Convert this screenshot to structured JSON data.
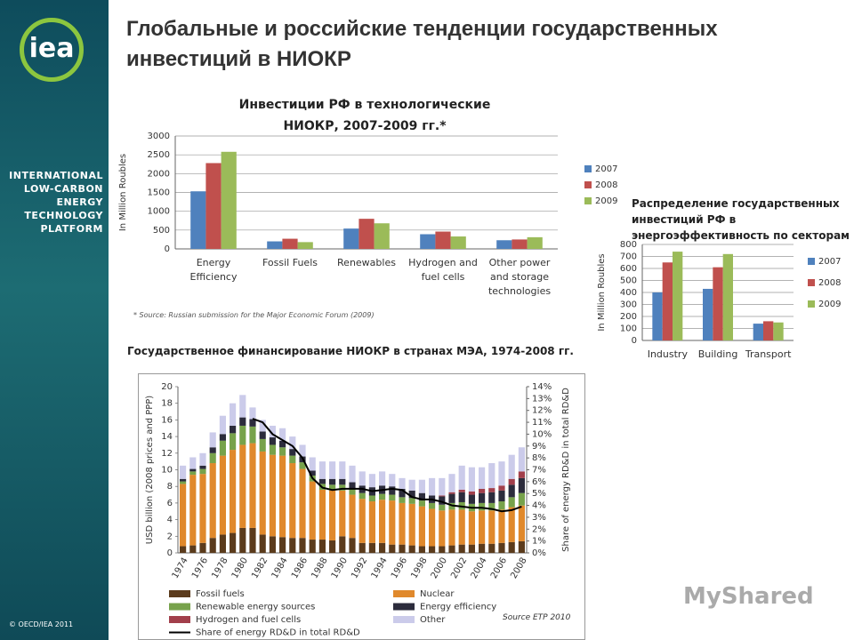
{
  "slide": {
    "title": "Глобальные и российские тенденции государственных инвестиций в НИОКР",
    "logo": "iea",
    "platform": "INTERNATIONAL LOW-CARBON ENERGY TECHNOLOGY PLATFORM",
    "copyright": "© OECD/IEA 2011",
    "watermark": "MyShared"
  },
  "chart_data": [
    {
      "type": "bar",
      "title": "Инвестиции РФ в технологические НИОКР, 2007-2009 гг.*",
      "y_label": "In Million Roubles",
      "note": "* Source: Russian submission for the Major Economic Forum (2009)",
      "categories": [
        "Energy Efficiency",
        "Fossil Fuels",
        "Renewables",
        "Hydrogen and fuel cells",
        "Other power and storage technologies"
      ],
      "series": [
        {
          "name": "2007",
          "color": "#4f81bd",
          "values": [
            1530,
            200,
            540,
            390,
            230
          ]
        },
        {
          "name": "2008",
          "color": "#c0504d",
          "values": [
            2280,
            270,
            800,
            460,
            250
          ]
        },
        {
          "name": "2009",
          "color": "#9bbb59",
          "values": [
            2580,
            180,
            680,
            330,
            310
          ]
        }
      ],
      "ylim": [
        0,
        3000
      ],
      "yticks": [
        0,
        500,
        1000,
        1500,
        2000,
        2500,
        3000
      ],
      "grid": true,
      "legend": "right"
    },
    {
      "type": "bar",
      "title": "Распределение государственных инвестиций РФ в энергоэффективность по секторам",
      "y_label": "In Million Roubles",
      "categories": [
        "Industry",
        "Building",
        "Transport"
      ],
      "series": [
        {
          "name": "2007",
          "color": "#4f81bd",
          "values": [
            400,
            430,
            140
          ]
        },
        {
          "name": "2008",
          "color": "#c0504d",
          "values": [
            650,
            610,
            160
          ]
        },
        {
          "name": "2009",
          "color": "#9bbb59",
          "values": [
            740,
            720,
            150
          ]
        }
      ],
      "ylim": [
        0,
        800
      ],
      "yticks": [
        0,
        100,
        200,
        300,
        400,
        500,
        600,
        700,
        800
      ],
      "grid": true,
      "legend": "right"
    },
    {
      "type": "bar",
      "stacked": true,
      "title": "Государственное финансирование НИОКР в странах МЭА, 1974-2008 гг.",
      "y_label": "USD billion (2008 prices and PPP)",
      "y2_label": "Share of energy RD&D in total RD&D",
      "source": "Source ETP 2010",
      "categories": [
        "1974",
        null,
        "1976",
        null,
        "1978",
        null,
        "1980",
        null,
        "1982",
        null,
        "1984",
        null,
        "1986",
        null,
        "1988",
        null,
        "1990",
        null,
        "1992",
        null,
        "1994",
        null,
        "1996",
        null,
        "1998",
        null,
        "2000",
        null,
        "2002",
        null,
        "2004",
        null,
        "2006",
        null,
        "2008"
      ],
      "series": [
        {
          "name": "Fossil fuels",
          "color": "#5b3b1c",
          "values": [
            0.8,
            0.9,
            1.2,
            1.8,
            2.2,
            2.4,
            3.0,
            3.0,
            2.2,
            2.0,
            1.9,
            1.8,
            1.8,
            1.6,
            1.6,
            1.5,
            2.0,
            1.8,
            1.2,
            1.2,
            1.2,
            1.0,
            1.0,
            0.9,
            0.8,
            0.8,
            0.8,
            0.9,
            1.0,
            1.0,
            1.1,
            1.1,
            1.2,
            1.3,
            1.4
          ]
        },
        {
          "name": "Nuclear",
          "color": "#e0892c",
          "values": [
            7.5,
            8.5,
            8.3,
            9.0,
            9.5,
            10.0,
            10.0,
            10.2,
            10.0,
            9.8,
            9.8,
            9.0,
            8.3,
            7.0,
            6.0,
            6.0,
            5.5,
            5.2,
            5.3,
            5.0,
            5.2,
            5.3,
            5.0,
            5.0,
            4.8,
            4.5,
            4.3,
            4.3,
            4.2,
            4.0,
            4.0,
            4.0,
            4.0,
            4.2,
            4.3
          ]
        },
        {
          "name": "Renewable energy sources",
          "color": "#77a24b",
          "values": [
            0.3,
            0.4,
            0.6,
            1.2,
            1.8,
            2.0,
            2.3,
            2.0,
            1.5,
            1.2,
            1.0,
            0.9,
            0.8,
            0.7,
            0.7,
            0.7,
            0.7,
            0.7,
            0.7,
            0.7,
            0.7,
            0.7,
            0.7,
            0.7,
            0.7,
            0.7,
            0.7,
            0.8,
            0.9,
            0.9,
            0.9,
            0.9,
            1.0,
            1.2,
            1.5
          ]
        },
        {
          "name": "Energy efficiency",
          "color": "#2c2c3c",
          "values": [
            0.3,
            0.3,
            0.4,
            0.7,
            0.8,
            0.9,
            1.0,
            0.9,
            0.9,
            0.9,
            0.8,
            0.8,
            0.7,
            0.6,
            0.6,
            0.7,
            0.7,
            0.8,
            0.9,
            1.0,
            1.0,
            1.0,
            1.0,
            0.9,
            0.9,
            0.9,
            1.0,
            1.1,
            1.2,
            1.1,
            1.2,
            1.3,
            1.3,
            1.5,
            1.8
          ]
        },
        {
          "name": "Hydrogen and fuel cells",
          "color": "#a23f4b",
          "values": [
            0,
            0,
            0,
            0,
            0,
            0,
            0,
            0,
            0,
            0,
            0,
            0,
            0,
            0,
            0,
            0,
            0,
            0,
            0,
            0,
            0,
            0,
            0,
            0,
            0,
            0,
            0.1,
            0.2,
            0.3,
            0.4,
            0.5,
            0.5,
            0.6,
            0.7,
            0.8
          ]
        },
        {
          "name": "Other",
          "color": "#cbcbea",
          "values": [
            1.6,
            1.4,
            1.5,
            1.8,
            2.2,
            2.7,
            2.7,
            1.4,
            1.4,
            1.4,
            1.5,
            1.5,
            1.4,
            1.6,
            2.1,
            2.1,
            2.1,
            2.0,
            1.7,
            1.6,
            1.7,
            1.5,
            1.3,
            1.3,
            1.6,
            2.1,
            2.1,
            2.2,
            2.9,
            2.9,
            2.6,
            3.0,
            2.9,
            2.9,
            2.9
          ]
        },
        {
          "name": "Share of energy RD&D in total RD&D",
          "color": "#000000",
          "type": "line",
          "axis": "y2",
          "values": [
            null,
            null,
            null,
            null,
            null,
            null,
            null,
            11.3,
            11.0,
            10.0,
            9.5,
            9.0,
            8.0,
            6.3,
            5.5,
            5.3,
            5.4,
            5.4,
            5.4,
            5.2,
            5.3,
            5.4,
            5.3,
            4.7,
            4.5,
            4.5,
            4.3,
            4.0,
            3.9,
            3.8,
            3.8,
            3.7,
            3.5,
            3.6,
            3.9
          ]
        }
      ],
      "ylim": [
        0,
        20
      ],
      "yticks": [
        0,
        2,
        4,
        6,
        8,
        10,
        12,
        14,
        16,
        18,
        20
      ],
      "y2lim": [
        0,
        14
      ],
      "y2ticks": [
        {
          "value": 0,
          "label": "0%"
        },
        {
          "value": 1,
          "label": "1%"
        },
        {
          "value": 2,
          "label": "2%"
        },
        {
          "value": 3,
          "label": "3%"
        },
        {
          "value": 4,
          "label": "4%"
        },
        {
          "value": 5,
          "label": "5%"
        },
        {
          "value": 6,
          "label": "6%"
        },
        {
          "value": 7,
          "label": "7%"
        },
        {
          "value": 8,
          "label": "8%"
        },
        {
          "value": 9,
          "label": "9%"
        },
        {
          "value": 10,
          "label": "10%"
        },
        {
          "value": 11,
          "label": "11%"
        },
        {
          "value": 12,
          "label": "12%"
        },
        {
          "value": 13,
          "label": "13%"
        },
        {
          "value": 14,
          "label": "14%"
        }
      ],
      "grid": false,
      "legend": "bottom"
    }
  ]
}
